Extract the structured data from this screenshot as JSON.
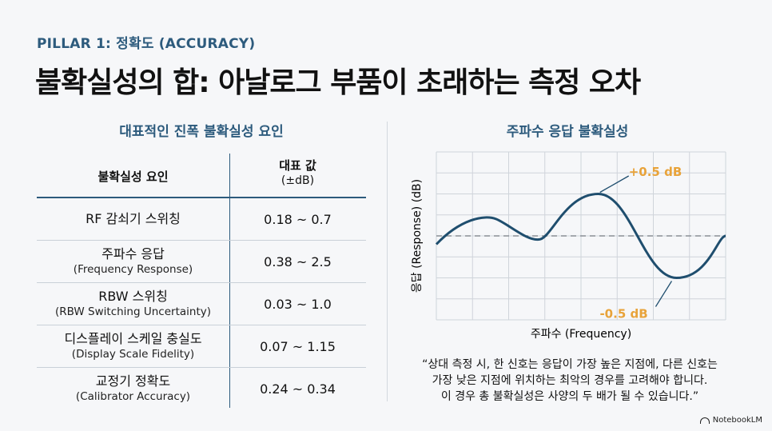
{
  "pillar": "PILLAR 1: 정확도 (ACCURACY)",
  "title": "불확실성의 합: 아날로그 부품이 초래하는 측정 오차",
  "left_panel": {
    "title": "대표적인 진폭 불확실성 요인",
    "header_factor": "불확실성 요인",
    "header_value": "대표 값",
    "header_unit": "(±dB)",
    "rows": [
      {
        "main": "RF 감쇠기 스위칭",
        "sub": "",
        "value": "0.18 ~ 0.7"
      },
      {
        "main": "주파수 응답",
        "sub": "(Frequency Response)",
        "value": "0.38 ~ 2.5"
      },
      {
        "main": "RBW 스위칭",
        "sub": "(RBW Switching Uncertainty)",
        "value": "0.03 ~ 1.0"
      },
      {
        "main": "디스플레이 스케일 충실도",
        "sub": "(Display Scale Fidelity)",
        "value": "0.07 ~ 1.15"
      },
      {
        "main": "교정기 정확도",
        "sub": "(Calibrator Accuracy)",
        "value": "0.24 ~ 0.34"
      }
    ]
  },
  "right_panel": {
    "title": "주파수 응답 불확실성",
    "chart_data": {
      "type": "line",
      "xlabel": "주파수 (Frequency)",
      "ylabel": "응답 (Response) (dB)",
      "ylim": [
        -1,
        1
      ],
      "grid": true,
      "reference_line": 0,
      "annotations": [
        {
          "text": "+0.5 dB",
          "value": 0.5
        },
        {
          "text": "-0.5 dB",
          "value": -0.5
        }
      ],
      "colors": {
        "line": "#1f4e6e",
        "annotation": "#e8a33a",
        "reference": "#8a8f96",
        "grid": "#cfd4da"
      }
    },
    "quote": [
      "“상대 측정 시, 한 신호는 응답이 가장 높은 지점에, 다른 신호는",
      "가장 낮은 지점에 위치하는 최악의 경우를 고려해야 합니다.",
      "이 경우 총 불확실성은 사양의 두 배가 될 수 있습니다.”"
    ]
  },
  "brand": "NotebookLM"
}
